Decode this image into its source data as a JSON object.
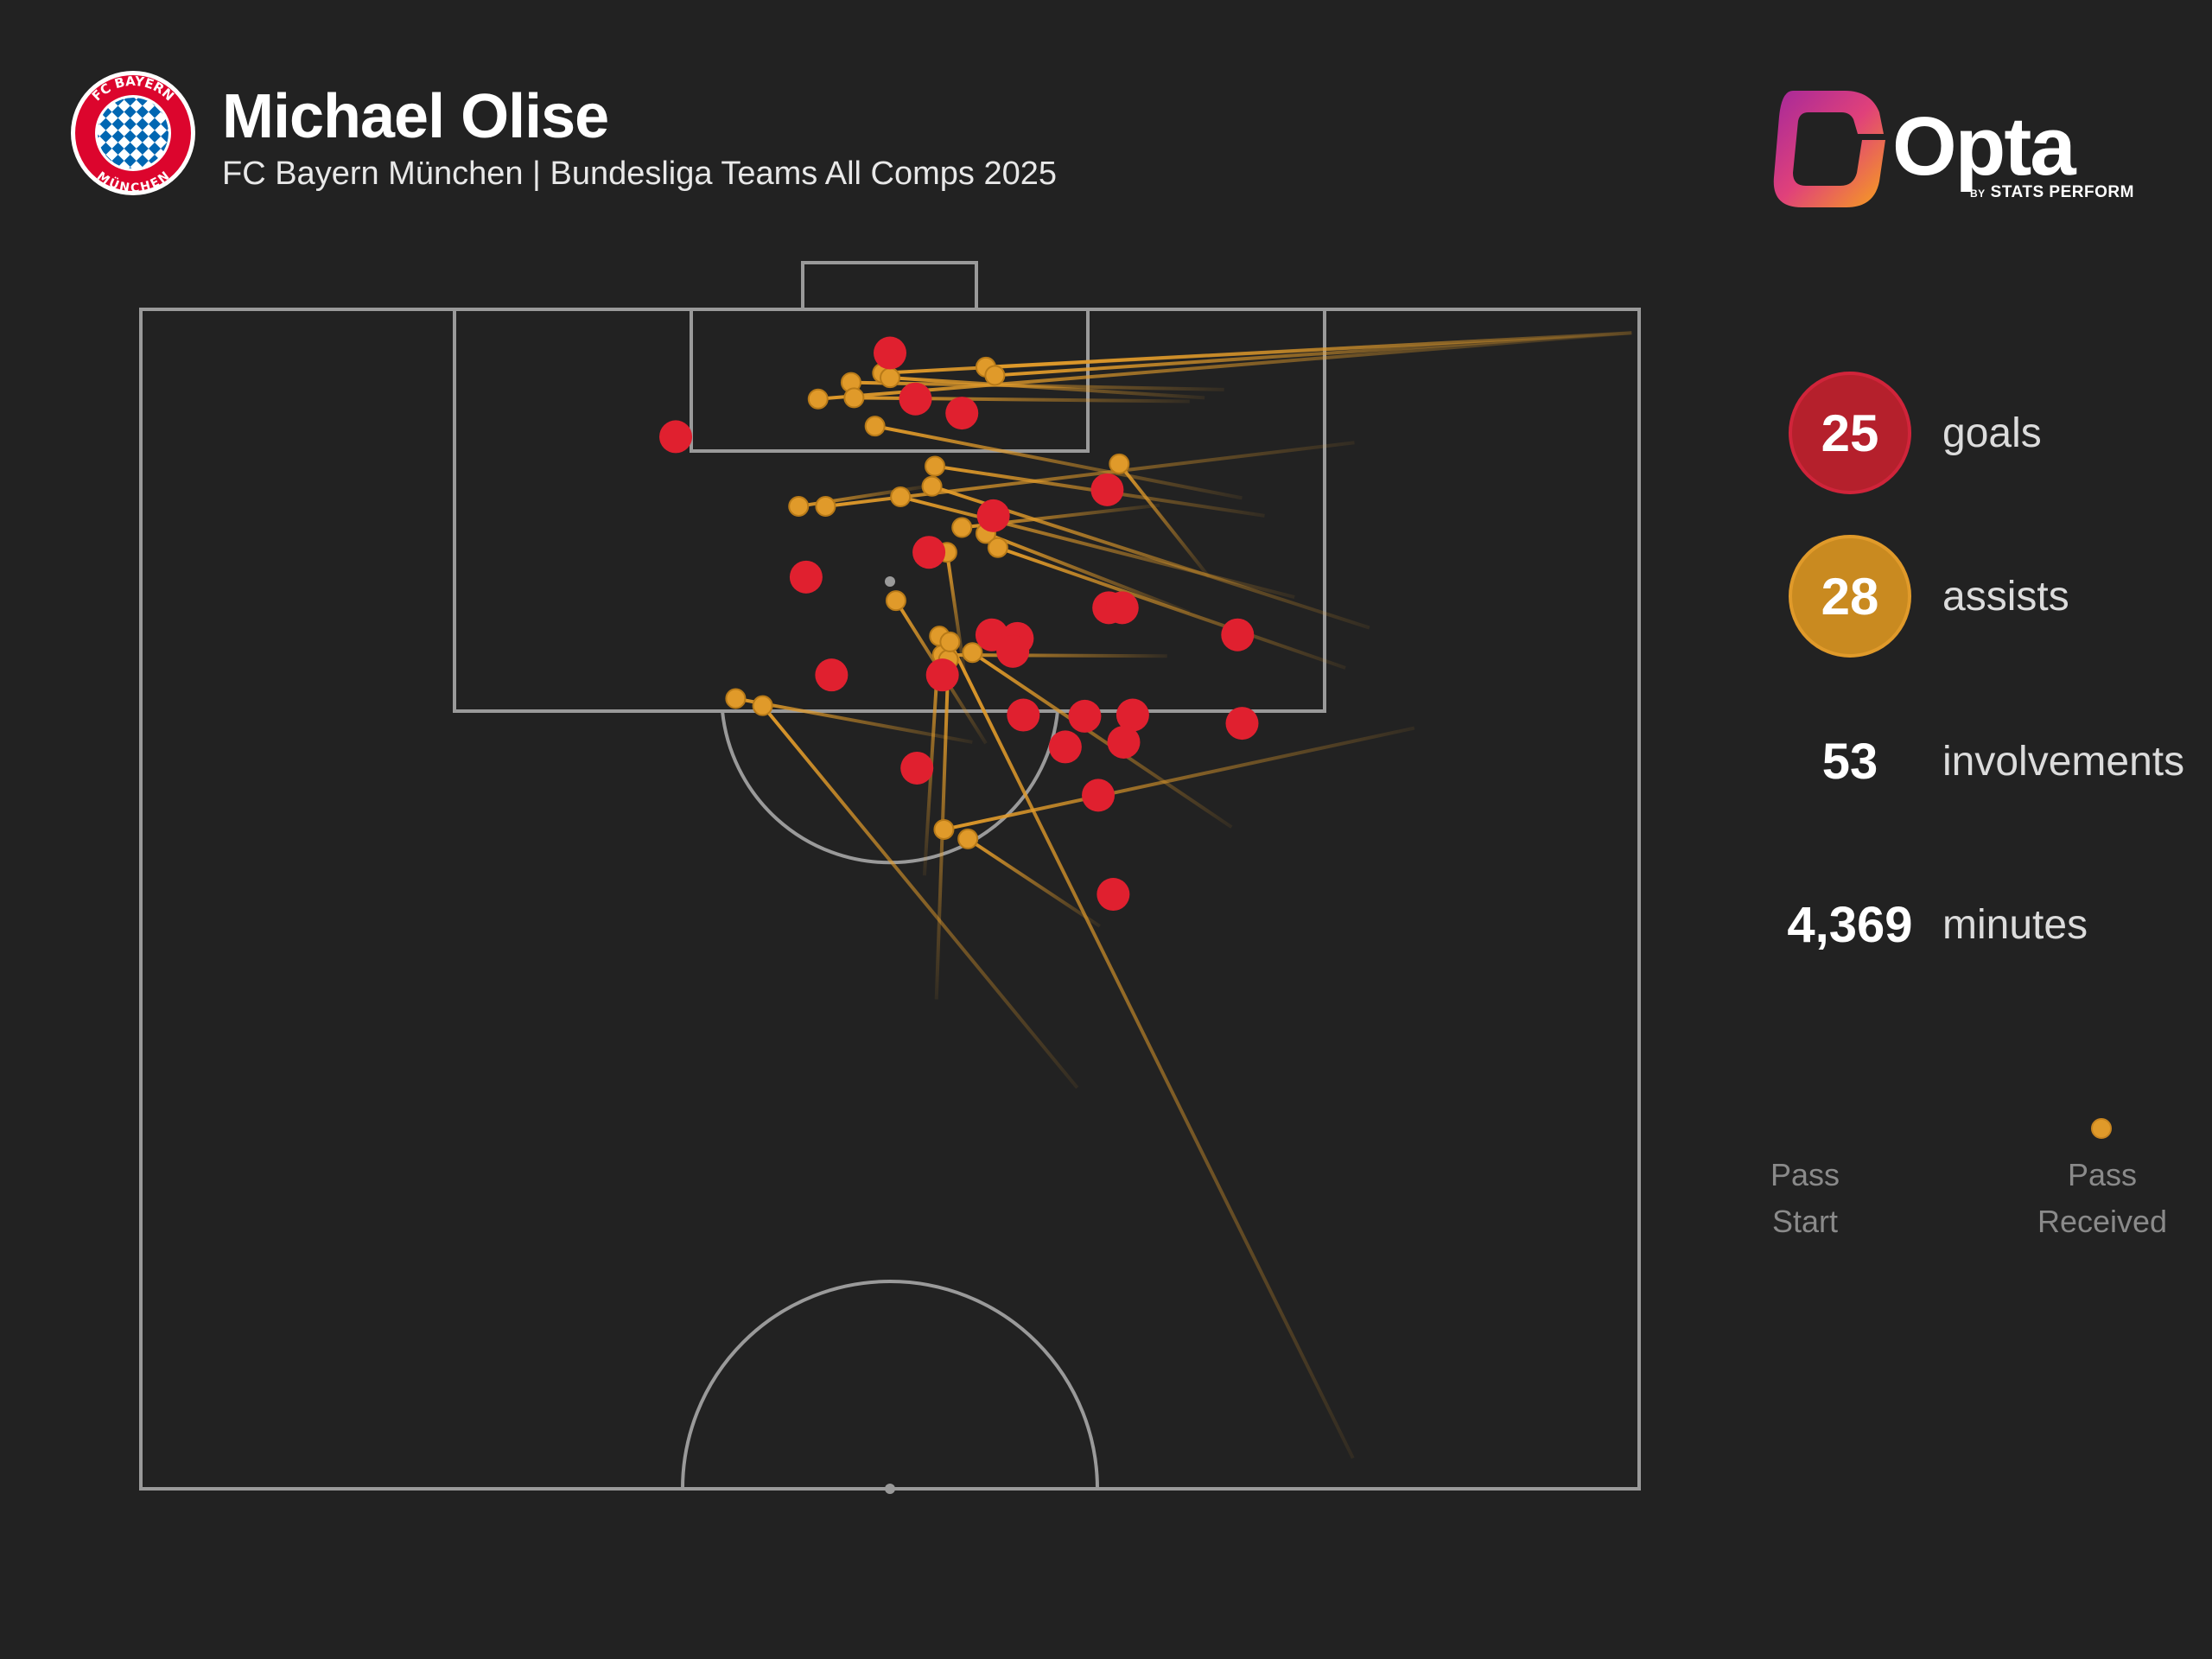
{
  "header": {
    "player_name": "Michael Olise",
    "subtitle": "FC Bayern München | Bundesliga Teams All Comps 2025",
    "badge_text_top": "FC BAYERN",
    "badge_text_bottom": "MÜNCHEN"
  },
  "brand": {
    "name": "Opta",
    "by": "BY",
    "sub": "STATS PERFORM"
  },
  "stats": [
    {
      "value": "25",
      "label": "goals",
      "style": "goals"
    },
    {
      "value": "28",
      "label": "assists",
      "style": "assists"
    },
    {
      "value": "53",
      "label": "involvements",
      "style": "plain"
    },
    {
      "value": "4,369",
      "label": "minutes",
      "style": "plain"
    }
  ],
  "legend": {
    "start_label_1": "Pass",
    "start_label_2": "Start",
    "end_label_1": "Pass",
    "end_label_2": "Received"
  },
  "colors": {
    "background": "#222222",
    "goal": "#e0202f",
    "assist": "#e09a2a",
    "pitch_line": "#9a9a9a"
  },
  "chart_data": {
    "type": "scatter",
    "x_range": [
      0,
      100
    ],
    "y_range": [
      0,
      100
    ],
    "goals": [
      [
        50.0,
        96.3
      ],
      [
        51.7,
        92.4
      ],
      [
        54.8,
        91.2
      ],
      [
        35.7,
        89.2
      ],
      [
        56.9,
        82.5
      ],
      [
        64.5,
        84.7
      ],
      [
        52.6,
        79.4
      ],
      [
        44.4,
        77.3
      ],
      [
        64.6,
        74.7
      ],
      [
        65.5,
        74.7
      ],
      [
        56.8,
        72.4
      ],
      [
        58.5,
        72.1
      ],
      [
        58.2,
        71.0
      ],
      [
        73.2,
        72.4
      ],
      [
        46.1,
        69.0
      ],
      [
        53.5,
        69.0
      ],
      [
        58.9,
        65.6
      ],
      [
        63.0,
        65.5
      ],
      [
        66.2,
        65.6
      ],
      [
        73.5,
        64.9
      ],
      [
        61.7,
        62.9
      ],
      [
        65.6,
        63.3
      ],
      [
        51.8,
        61.1
      ],
      [
        63.9,
        58.8
      ],
      [
        64.9,
        50.4
      ]
    ],
    "assists": [
      {
        "end": [
          56.4,
          95.1
        ],
        "start": [
          99.5,
          98.0
        ]
      },
      {
        "end": [
          57.0,
          94.4
        ],
        "start": [
          99.5,
          98.0
        ]
      },
      {
        "end": [
          49.5,
          94.6
        ],
        "start": [
          99.5,
          98.0
        ]
      },
      {
        "end": [
          47.4,
          93.8
        ],
        "start": [
          72.3,
          93.2
        ]
      },
      {
        "end": [
          50.0,
          94.2
        ],
        "start": [
          71.0,
          92.5
        ]
      },
      {
        "end": [
          45.2,
          92.4
        ],
        "start": [
          99.5,
          98.0
        ]
      },
      {
        "end": [
          47.6,
          92.5
        ],
        "start": [
          70.0,
          92.2
        ]
      },
      {
        "end": [
          49.0,
          90.1
        ],
        "start": [
          73.5,
          84.0
        ]
      },
      {
        "end": [
          53.0,
          86.7
        ],
        "start": [
          75.0,
          82.5
        ]
      },
      {
        "end": [
          65.3,
          86.9
        ],
        "start": [
          71.3,
          77.3
        ]
      },
      {
        "end": [
          43.9,
          83.3
        ],
        "start": [
          52.5,
          85.0
        ]
      },
      {
        "end": [
          45.7,
          83.3
        ],
        "start": [
          81.0,
          88.7
        ]
      },
      {
        "end": [
          50.7,
          84.1
        ],
        "start": [
          77.0,
          75.6
        ]
      },
      {
        "end": [
          52.8,
          85.0
        ],
        "start": [
          82.0,
          73.0
        ]
      },
      {
        "end": [
          54.8,
          81.5
        ],
        "start": [
          68.0,
          83.4
        ]
      },
      {
        "end": [
          56.4,
          81.0
        ],
        "start": [
          70.0,
          74.3
        ]
      },
      {
        "end": [
          57.2,
          79.8
        ],
        "start": [
          80.4,
          69.6
        ]
      },
      {
        "end": [
          53.8,
          79.4
        ],
        "start": [
          55.0,
          69.0
        ]
      },
      {
        "end": [
          50.4,
          75.3
        ],
        "start": [
          56.4,
          63.2
        ]
      },
      {
        "end": [
          53.5,
          70.7
        ],
        "start": [
          68.5,
          70.6
        ]
      },
      {
        "end": [
          55.5,
          70.9
        ],
        "start": [
          72.8,
          56.1
        ]
      },
      {
        "end": [
          39.7,
          67.0
        ],
        "start": [
          55.5,
          63.3
        ]
      },
      {
        "end": [
          41.5,
          66.4
        ],
        "start": [
          62.5,
          34.0
        ]
      },
      {
        "end": [
          53.6,
          55.9
        ],
        "start": [
          85.0,
          64.5
        ]
      },
      {
        "end": [
          55.2,
          55.1
        ],
        "start": [
          64.0,
          47.7
        ]
      },
      {
        "end": [
          53.3,
          72.3
        ],
        "start": [
          52.3,
          52.0
        ]
      },
      {
        "end": [
          53.9,
          70.3
        ],
        "start": [
          53.1,
          41.5
        ]
      },
      {
        "end": [
          54.0,
          71.8
        ],
        "start": [
          80.9,
          2.6
        ]
      }
    ]
  }
}
